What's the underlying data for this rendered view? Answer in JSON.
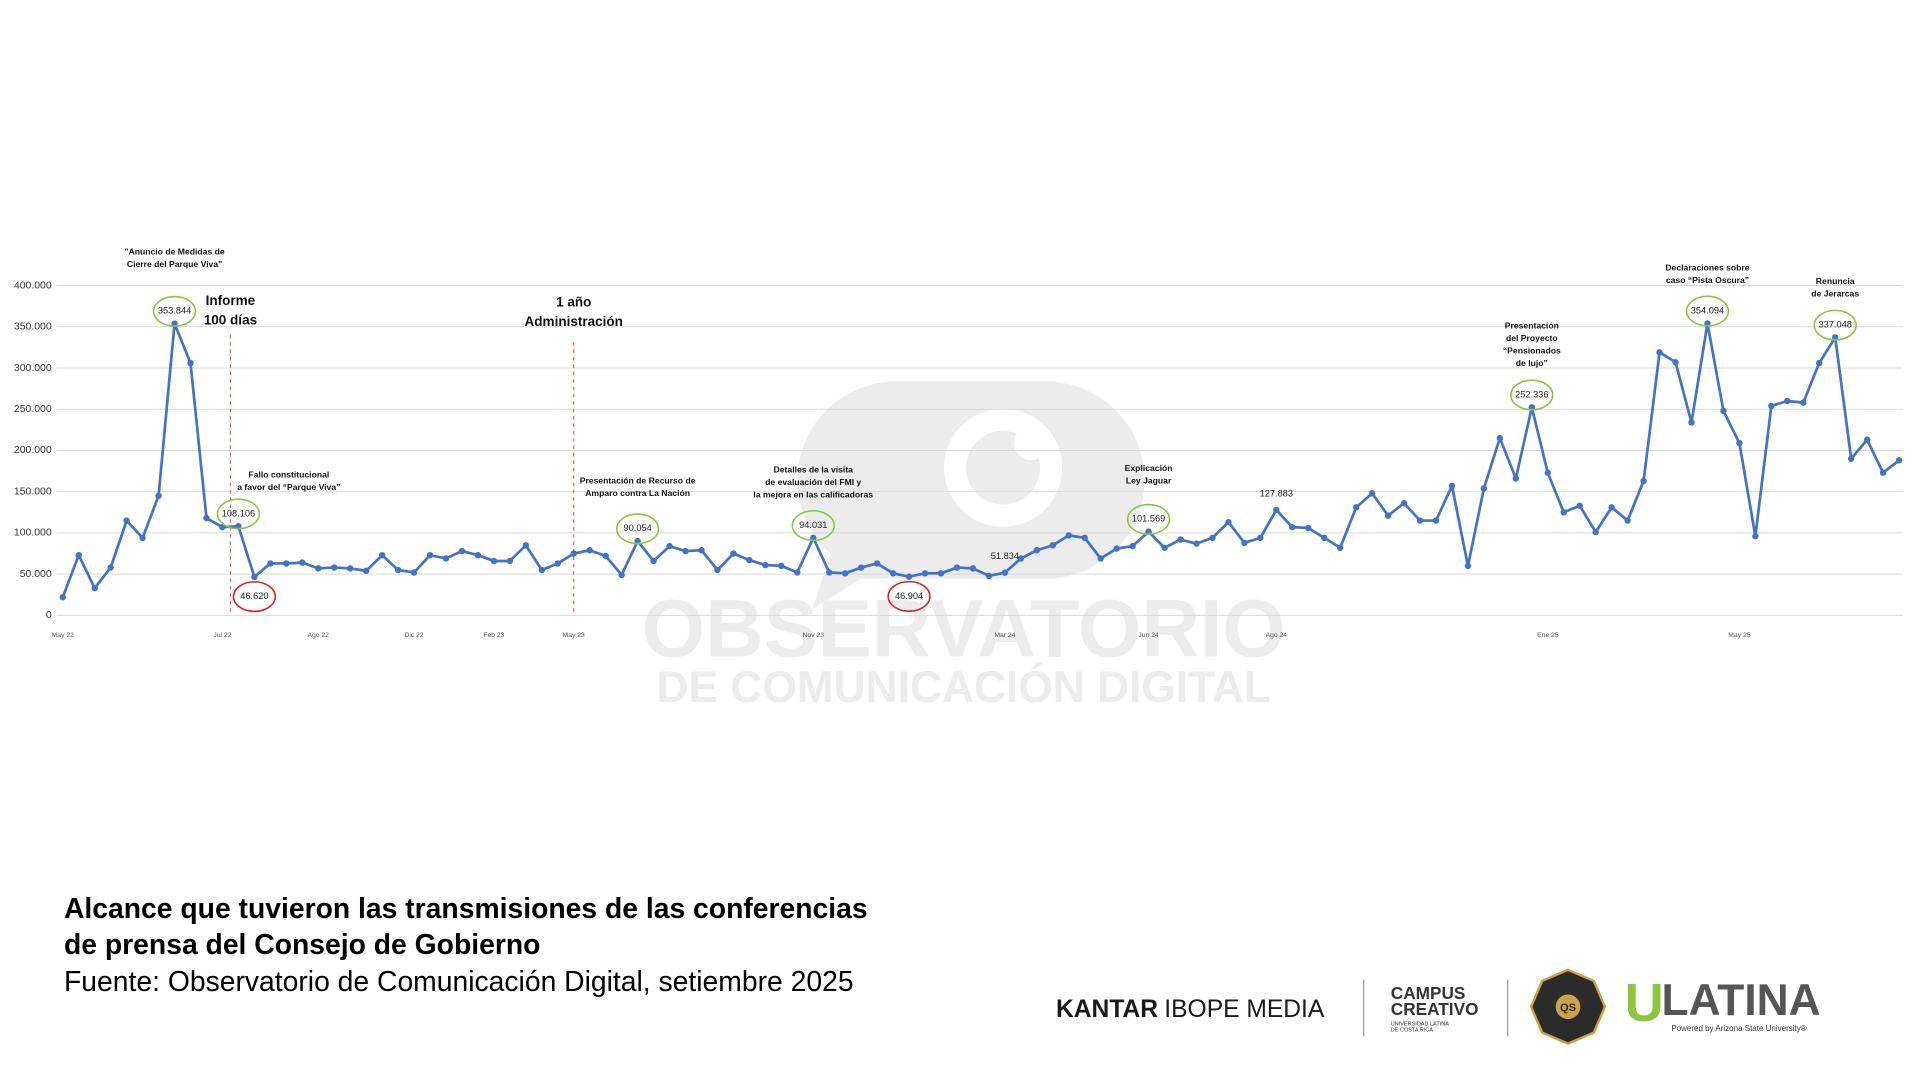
{
  "chart_data": {
    "type": "line",
    "title": [
      "Alcance que tuvieron las transmisiones de las conferencias",
      "de prensa del Consejo de Gobierno"
    ],
    "source": "Fuente: Observatorio de Comunicación Digital, setiembre 2025",
    "color": "#4472c4",
    "grid": true,
    "ylim": [
      0,
      400000
    ],
    "yticks": [
      0,
      {
        "value": 50000,
        "label": "50.000"
      },
      {
        "value": 100000,
        "label": "100.000"
      },
      {
        "value": 150000,
        "label": "150.000"
      },
      {
        "value": 200000,
        "label": "200.000"
      },
      {
        "value": 250000,
        "label": "250.000"
      },
      {
        "value": 300000,
        "label": "300.000"
      },
      {
        "value": 350000,
        "label": "350.000"
      },
      {
        "value": 400000,
        "label": "400.000"
      }
    ],
    "categories": [
      "May 22",
      null,
      null,
      null,
      null,
      null,
      null,
      null,
      null,
      null,
      "Jul 22",
      null,
      null,
      null,
      null,
      null,
      "Ago 22",
      null,
      null,
      null,
      null,
      null,
      "Dic 22",
      null,
      null,
      null,
      null,
      "Feb 23",
      null,
      null,
      null,
      null,
      "May 23",
      null,
      null,
      null,
      null,
      null,
      null,
      null,
      null,
      null,
      null,
      null,
      null,
      null,
      null,
      "Nov 23",
      null,
      null,
      null,
      null,
      null,
      null,
      null,
      null,
      null,
      null,
      null,
      "Mar 24",
      null,
      null,
      null,
      null,
      null,
      null,
      null,
      null,
      "Jun 24",
      null,
      null,
      null,
      null,
      null,
      null,
      null,
      "Ago 24",
      null,
      null,
      null,
      null,
      null,
      null,
      null,
      null,
      null,
      null,
      null,
      null,
      null,
      null,
      null,
      null,
      "Ene 25",
      null,
      null,
      null,
      null,
      null,
      null,
      null,
      null,
      null,
      null,
      null,
      "May 25",
      null,
      null,
      null,
      null,
      null,
      null,
      null,
      null,
      null,
      null
    ],
    "values": [
      22000,
      73000,
      33000,
      58000,
      115000,
      94000,
      145000,
      353844,
      306000,
      118000,
      107000,
      108106,
      46620,
      63000,
      63000,
      64000,
      57000,
      58000,
      57000,
      54000,
      73000,
      55000,
      52000,
      73000,
      69000,
      78000,
      73000,
      66000,
      66000,
      85000,
      55000,
      63000,
      75000,
      79000,
      72000,
      49000,
      90054,
      66000,
      84000,
      78000,
      79000,
      55000,
      75000,
      67000,
      61000,
      60000,
      52000,
      94031,
      52000,
      51000,
      58000,
      63000,
      51000,
      46904,
      51000,
      51000,
      58000,
      57000,
      48000,
      51834,
      69000,
      79000,
      85000,
      97000,
      94000,
      69000,
      81000,
      84000,
      101569,
      82000,
      92000,
      87000,
      94000,
      113000,
      88000,
      94000,
      127883,
      107000,
      106000,
      94000,
      82000,
      131000,
      148000,
      121000,
      136000,
      115000,
      115000,
      157000,
      60000,
      154000,
      215000,
      166000,
      252336,
      173000,
      125000,
      133000,
      101000,
      131000,
      115000,
      163000,
      319000,
      307000,
      234000,
      354094,
      248000,
      209000,
      96000,
      254000,
      260000,
      258000,
      306000,
      337048,
      190000,
      213000,
      173000,
      188000
    ],
    "value_labels": [
      null,
      null,
      null,
      null,
      null,
      null,
      null,
      "353.844",
      null,
      null,
      null,
      "108.106",
      "46.620",
      null,
      null,
      null,
      null,
      null,
      null,
      null,
      null,
      null,
      null,
      null,
      null,
      null,
      null,
      null,
      null,
      null,
      null,
      null,
      null,
      null,
      null,
      null,
      "90.054",
      null,
      null,
      null,
      null,
      null,
      null,
      null,
      null,
      null,
      null,
      "94.031",
      null,
      null,
      null,
      null,
      null,
      "46.904",
      null,
      null,
      null,
      null,
      null,
      "51.834",
      null,
      null,
      null,
      null,
      null,
      null,
      null,
      null,
      "101.569",
      null,
      null,
      null,
      null,
      null,
      null,
      null,
      "127.883",
      null,
      null,
      null,
      null,
      null,
      null,
      null,
      null,
      null,
      null,
      null,
      null,
      null,
      null,
      null,
      "252.336",
      null,
      null,
      null,
      null,
      null,
      null,
      null,
      null,
      null,
      null,
      "354.094",
      null,
      null,
      null,
      null,
      null,
      null,
      null,
      "337.048",
      null,
      null,
      null,
      null
    ],
    "annotations": [
      {
        "lines": [
          "\"Anuncio de Medidas de",
          "Cierre del Parque Viva\""
        ]
      },
      {
        "lines": [
          "Informe",
          "100 días"
        ]
      },
      {
        "lines": [
          "1 año",
          "Administración"
        ]
      },
      {
        "lines": [
          "Fallo constitucional",
          "a favor del “Parque Viva”"
        ]
      },
      {
        "lines": [
          "Presentación de Recurso de",
          "Amparo contra La Nación"
        ]
      },
      {
        "lines": [
          "Detalles de la visita",
          "de evaluación del FMI y",
          "la mejora en las calificadoras"
        ]
      },
      {
        "lines": [
          "Explicación",
          "Ley Jaguar"
        ]
      },
      {
        "lines": [
          "Presentación",
          "del Proyecto",
          "“Pensionados",
          "de lujo”"
        ]
      },
      {
        "lines": [
          "Declaraciones sobre",
          "caso “Pista Oscura”"
        ]
      },
      {
        "lines": [
          "Renuncia",
          "de Jerarcas"
        ]
      }
    ]
  },
  "watermark": [
    "OBSERVATORIO",
    "DE COMUNICACIÓN DIGITAL"
  ],
  "logos": {
    "kantar": [
      "KANTAR",
      "IBOPE MEDIA"
    ],
    "campus": [
      "CAMPUS",
      "CREATIVO",
      "UNIVERSIDAD LATINA",
      "DE COSTA RICA"
    ],
    "badge": "QS",
    "ulatina": [
      "U",
      "LATINA",
      "Powered by Arizona State University®"
    ]
  }
}
